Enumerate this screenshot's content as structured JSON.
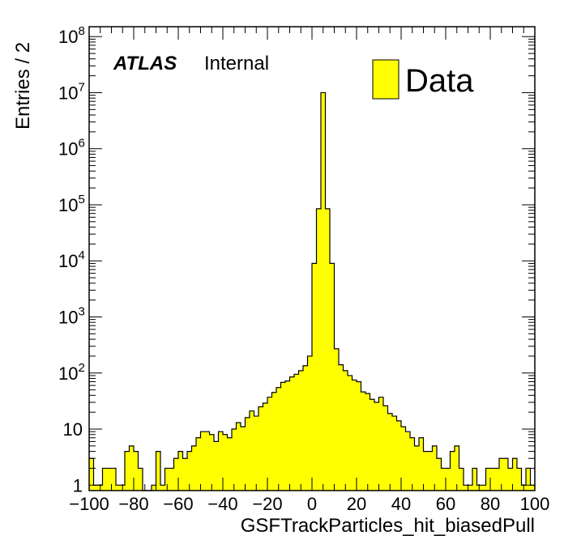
{
  "chart_data": {
    "type": "bar",
    "title": "",
    "xlabel": "GSFTrackParticles_hit_biasedPull",
    "ylabel": "Entries / 2",
    "xlim": [
      -100,
      100
    ],
    "ylim": [
      0.8,
      150000000
    ],
    "y_scale": "log",
    "bin_width": 2,
    "x_tick_labels": [
      "−100",
      "−80",
      "−60",
      "−40",
      "−20",
      "0",
      "20",
      "40",
      "60",
      "80",
      "100"
    ],
    "x_tick_values": [
      -100,
      -80,
      -60,
      -40,
      -20,
      0,
      20,
      40,
      60,
      80,
      100
    ],
    "y_tick_labels": [
      {
        "value": 1,
        "base": "1",
        "exp": ""
      },
      {
        "value": 10,
        "base": "10",
        "exp": ""
      },
      {
        "value": 100,
        "base": "10",
        "exp": "2"
      },
      {
        "value": 1000,
        "base": "10",
        "exp": "3"
      },
      {
        "value": 10000,
        "base": "10",
        "exp": "4"
      },
      {
        "value": 100000,
        "base": "10",
        "exp": "5"
      },
      {
        "value": 1000000,
        "base": "10",
        "exp": "6"
      },
      {
        "value": 10000000,
        "base": "10",
        "exp": "7"
      },
      {
        "value": 100000000,
        "base": "10",
        "exp": "8"
      }
    ],
    "bin_edges_start": -100,
    "values": [
      3,
      1,
      1,
      2,
      2,
      2,
      1,
      1,
      4,
      5,
      4,
      2,
      0,
      0,
      1,
      4,
      1,
      2,
      2,
      3,
      4,
      3,
      4,
      5,
      7,
      9,
      9,
      8,
      6,
      9,
      8,
      7,
      10,
      13,
      11,
      16,
      21,
      17,
      25,
      29,
      37,
      45,
      55,
      68,
      72,
      85,
      95,
      110,
      135,
      200,
      9000,
      85000,
      10000000,
      85000,
      9000,
      270,
      140,
      110,
      90,
      75,
      70,
      46,
      43,
      34,
      30,
      37,
      26,
      19,
      17,
      14,
      11,
      9,
      7,
      5,
      7,
      4,
      4,
      5,
      3,
      2,
      2,
      4,
      5,
      2,
      1,
      1,
      2,
      1,
      1,
      2,
      2,
      2,
      3,
      3,
      2,
      3,
      2,
      1,
      2,
      1
    ],
    "legend": {
      "entries": [
        {
          "name": "Data",
          "color": "#ffff00"
        }
      ],
      "placement": "top-right"
    },
    "annotations": {
      "experiment": "ATLAS",
      "status": "Internal"
    },
    "fill_color": "#ffff00",
    "line_color": "#000000",
    "grid": false
  }
}
